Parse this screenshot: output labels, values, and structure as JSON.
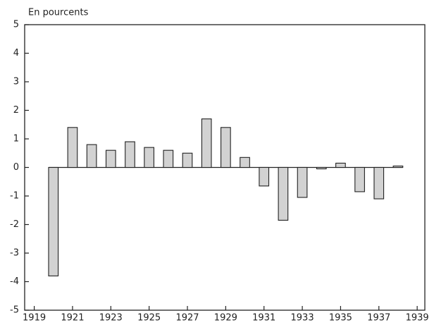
{
  "chart_data": {
    "type": "bar",
    "y_label": "En pourcents",
    "x": [
      1920,
      1921,
      1922,
      1923,
      1924,
      1925,
      1926,
      1927,
      1928,
      1929,
      1930,
      1931,
      1932,
      1933,
      1934,
      1935,
      1936,
      1937,
      1938
    ],
    "values": [
      -3.8,
      1.4,
      0.8,
      0.6,
      0.9,
      0.7,
      0.6,
      0.5,
      1.7,
      1.4,
      0.35,
      -0.65,
      -1.85,
      -1.05,
      -0.05,
      0.15,
      -0.85,
      -1.1,
      0.05
    ],
    "color": "#d2d2d2",
    "xlim": [
      1918.5,
      1939.4
    ],
    "xticks": [
      1919,
      1921,
      1923,
      1925,
      1927,
      1929,
      1931,
      1933,
      1935,
      1937,
      1939
    ],
    "ylim": [
      -5,
      5
    ],
    "yticks": [
      -5,
      -4,
      -3,
      -2,
      -1,
      0,
      1,
      2,
      3,
      4,
      5
    ],
    "grid": false
  }
}
